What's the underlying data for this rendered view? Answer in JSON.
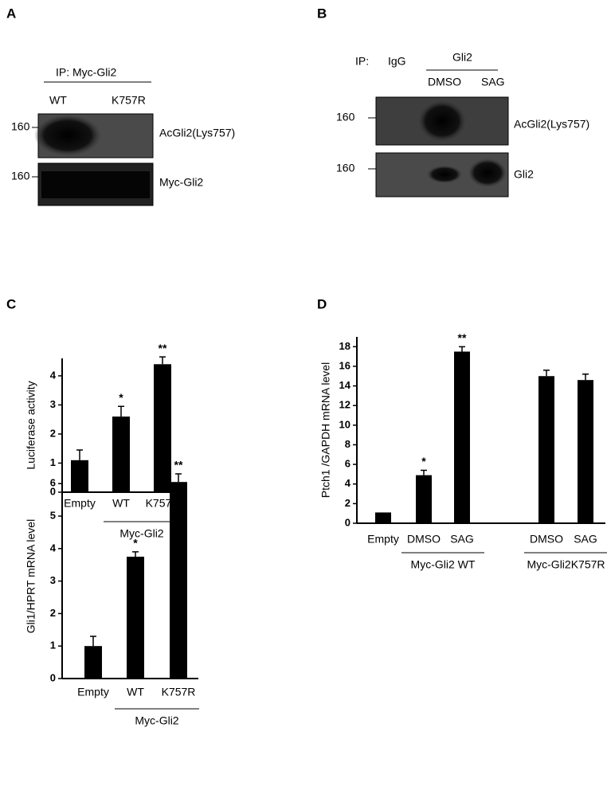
{
  "panels": {
    "A": {
      "label": "A",
      "ip": "IP: Myc-Gli2",
      "lanes": [
        "WT",
        "K757R"
      ],
      "blots": [
        {
          "mw": "160",
          "name": "AcGli2(Lys757)"
        },
        {
          "mw": "160",
          "name": "Myc-Gli2"
        }
      ]
    },
    "B": {
      "label": "B",
      "ip": "IP:",
      "control": "IgG",
      "antibody": "Gli2",
      "lanes": [
        "DMSO",
        "SAG"
      ],
      "blots": [
        {
          "mw": "160",
          "name": "AcGli2(Lys757)"
        },
        {
          "mw": "160",
          "name": "Gli2"
        }
      ]
    }
  },
  "chart_data": [
    {
      "type": "bar",
      "panel_label": "C",
      "y_label": "Luciferase activity",
      "categories": [
        "Empty",
        "WT",
        "K757R"
      ],
      "values": [
        1.1,
        2.6,
        4.4
      ],
      "errors": [
        0.35,
        0.35,
        0.25
      ],
      "significance": [
        null,
        "*",
        "**"
      ],
      "groups": [
        {
          "label": "Myc-Gli2",
          "first": 1,
          "last": 2
        }
      ],
      "color": "#000000",
      "ylim": [
        0,
        4.6
      ],
      "yticks": [
        0,
        1,
        2,
        3,
        4
      ]
    },
    {
      "type": "bar",
      "y_label": "Gli1/HPRT mRNA level",
      "categories": [
        "Empty",
        "WT",
        "K757R"
      ],
      "values": [
        1.0,
        3.75,
        6.05
      ],
      "errors": [
        0.3,
        0.15,
        0.25
      ],
      "significance": [
        null,
        "*",
        "**"
      ],
      "groups": [
        {
          "label": "Myc-Gli2",
          "first": 1,
          "last": 2
        }
      ],
      "color": "#000000",
      "ylim": [
        0,
        6.3
      ],
      "yticks": [
        0,
        1,
        2,
        3,
        4,
        5,
        6
      ]
    },
    {
      "type": "bar",
      "panel_label": "D",
      "y_label": "Ptch1 /GAPDH mRNA level",
      "categories": [
        "Empty",
        "DMSO",
        "SAG",
        "DMSO",
        "SAG"
      ],
      "values": [
        1.1,
        4.9,
        17.5,
        15.0,
        14.6
      ],
      "errors": [
        0,
        0.5,
        0.5,
        0.6,
        0.6
      ],
      "significance": [
        null,
        "*",
        "**",
        null,
        null
      ],
      "groups": [
        {
          "label": "Myc-Gli2 WT",
          "first": 1,
          "last": 2
        },
        {
          "label": "Myc-Gli2K757R",
          "first": 3,
          "last": 4
        }
      ],
      "color": "#000000",
      "ylim": [
        0,
        19
      ],
      "yticks": [
        0,
        2,
        4,
        6,
        8,
        10,
        12,
        14,
        16,
        18
      ]
    }
  ]
}
